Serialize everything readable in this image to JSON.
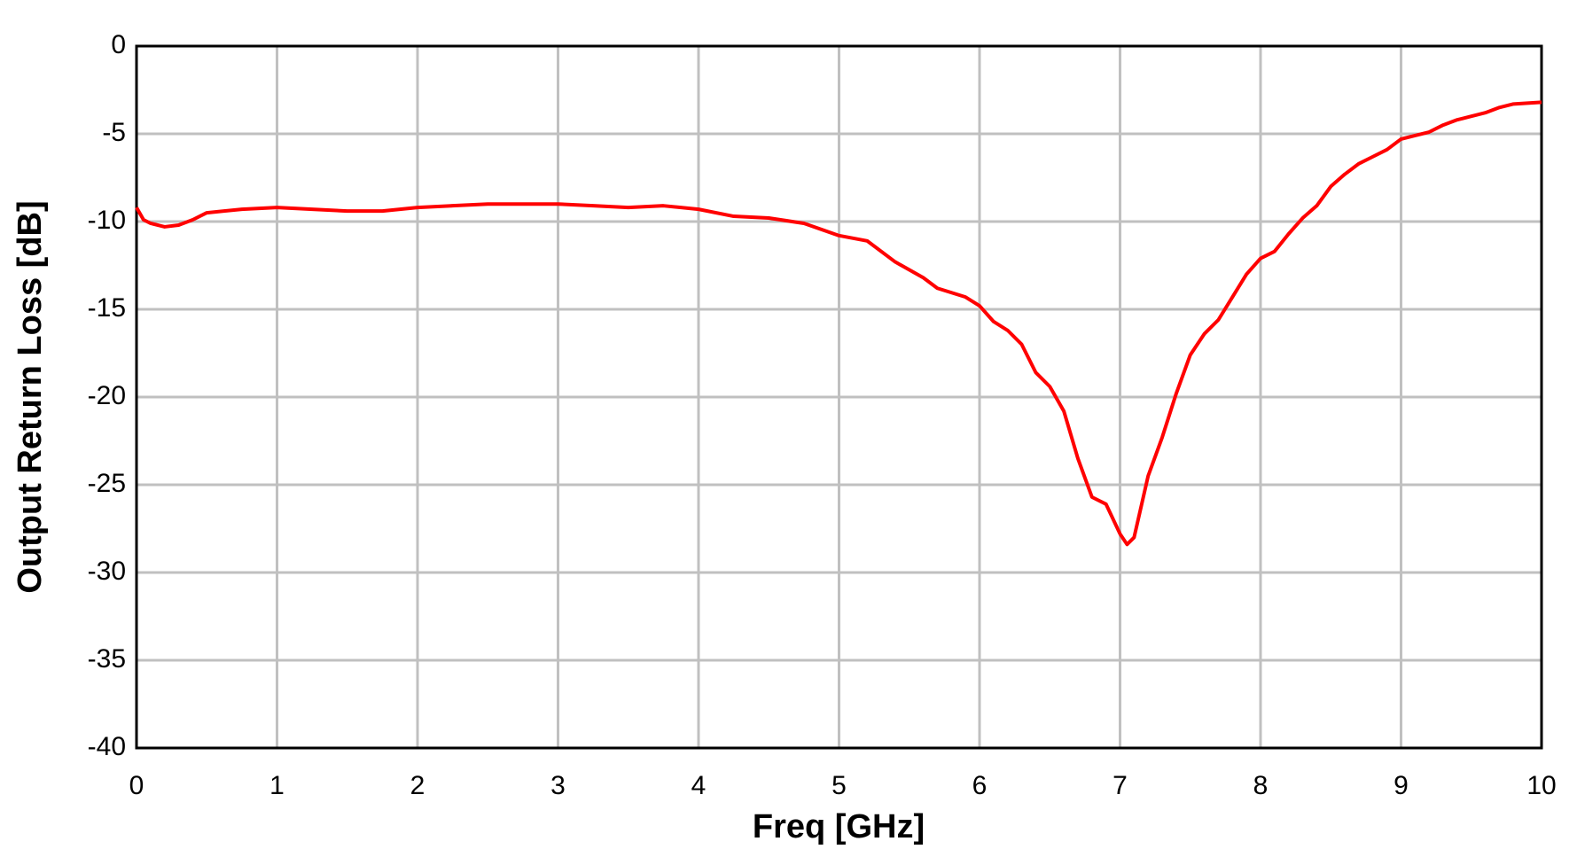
{
  "chart_data": {
    "type": "line",
    "xlabel": "Freq [GHz]",
    "ylabel": "Output Return Loss [dB]",
    "x": [
      0,
      0.05,
      0.1,
      0.2,
      0.3,
      0.4,
      0.5,
      0.75,
      1.0,
      1.25,
      1.5,
      1.75,
      2.0,
      2.25,
      2.5,
      2.75,
      3.0,
      3.25,
      3.5,
      3.75,
      4.0,
      4.25,
      4.5,
      4.75,
      5.0,
      5.2,
      5.4,
      5.6,
      5.7,
      5.9,
      6.0,
      6.1,
      6.2,
      6.3,
      6.4,
      6.5,
      6.6,
      6.7,
      6.8,
      6.9,
      7.0,
      7.05,
      7.1,
      7.2,
      7.3,
      7.4,
      7.5,
      7.6,
      7.7,
      7.8,
      7.9,
      8.0,
      8.1,
      8.2,
      8.3,
      8.4,
      8.5,
      8.6,
      8.7,
      8.8,
      8.9,
      9.0,
      9.1,
      9.2,
      9.3,
      9.4,
      9.5,
      9.6,
      9.7,
      9.8,
      10.0
    ],
    "series": [
      {
        "color": "#ff0000",
        "values": [
          -9.2,
          -9.9,
          -10.1,
          -10.3,
          -10.2,
          -9.9,
          -9.5,
          -9.3,
          -9.2,
          -9.3,
          -9.4,
          -9.4,
          -9.2,
          -9.1,
          -9.0,
          -9.0,
          -9.0,
          -9.1,
          -9.2,
          -9.1,
          -9.3,
          -9.7,
          -9.8,
          -10.1,
          -10.8,
          -11.1,
          -12.3,
          -13.2,
          -13.8,
          -14.3,
          -14.8,
          -15.7,
          -16.2,
          -17.0,
          -18.6,
          -19.4,
          -20.8,
          -23.5,
          -25.7,
          -26.1,
          -27.8,
          -28.4,
          -28.0,
          -24.5,
          -22.3,
          -19.8,
          -17.6,
          -16.4,
          -15.6,
          -14.3,
          -13.0,
          -12.1,
          -11.7,
          -10.7,
          -9.8,
          -9.1,
          -8.0,
          -7.3,
          -6.7,
          -6.3,
          -5.9,
          -5.3,
          -5.1,
          -4.9,
          -4.5,
          -4.2,
          -4.0,
          -3.8,
          -3.5,
          -3.3,
          -3.2
        ]
      }
    ],
    "xlim": [
      0,
      10
    ],
    "xticks": [
      0,
      1,
      2,
      3,
      4,
      5,
      6,
      7,
      8,
      9,
      10
    ],
    "ylim": [
      -40,
      0
    ],
    "yticks": [
      -40,
      -35,
      -30,
      -25,
      -20,
      -15,
      -10,
      -5,
      0
    ],
    "grid": true
  }
}
